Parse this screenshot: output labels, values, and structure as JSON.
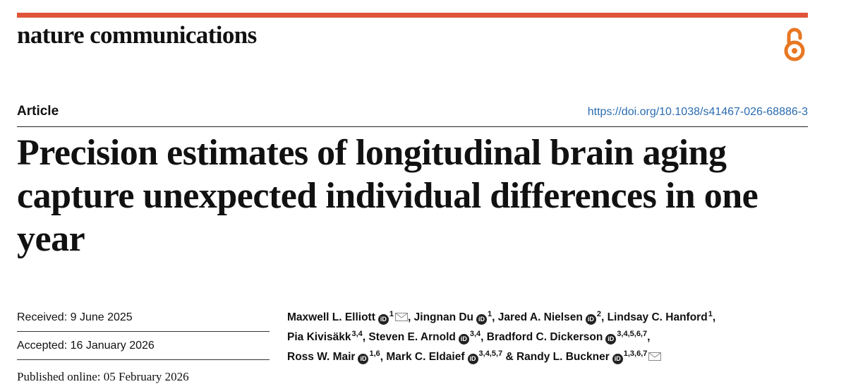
{
  "header": {
    "journal": "nature communications",
    "accent_color": "#e0553a",
    "open_access_icon": "open-access-icon"
  },
  "article": {
    "type": "Article",
    "doi": "https://doi.org/10.1038/s41467-026-68886-3",
    "title": "Precision estimates of longitudinal brain aging capture unexpected individual differences in one year"
  },
  "dates": {
    "received": "Received: 9 June 2025",
    "accepted": "Accepted: 16 January 2026",
    "published": "Published online: 05 February 2026"
  },
  "authors": [
    {
      "name": "Maxwell L. Elliott",
      "orcid": true,
      "aff": "1",
      "email": true
    },
    {
      "name": "Jingnan Du",
      "orcid": true,
      "aff": "1",
      "email": false
    },
    {
      "name": "Jared A. Nielsen",
      "orcid": true,
      "aff": "2",
      "email": false
    },
    {
      "name": "Lindsay C. Hanford",
      "orcid": false,
      "aff": "1",
      "email": false
    },
    {
      "name": "Pia Kivisäkk",
      "orcid": false,
      "aff": "3,4",
      "email": false
    },
    {
      "name": "Steven E. Arnold",
      "orcid": true,
      "aff": "3,4",
      "email": false
    },
    {
      "name": "Bradford C. Dickerson",
      "orcid": true,
      "aff": "3,4,5,6,7",
      "email": false
    },
    {
      "name": "Ross W. Mair",
      "orcid": true,
      "aff": "1,6",
      "email": false
    },
    {
      "name": "Mark C. Eldaief",
      "orcid": true,
      "aff": "3,4,5,7",
      "email": false
    },
    {
      "name": "Randy L. Buckner",
      "orcid": true,
      "aff": "1,3,6,7",
      "email": true
    }
  ],
  "separators": {
    "comma": ",",
    "final_conjunction": "&"
  }
}
